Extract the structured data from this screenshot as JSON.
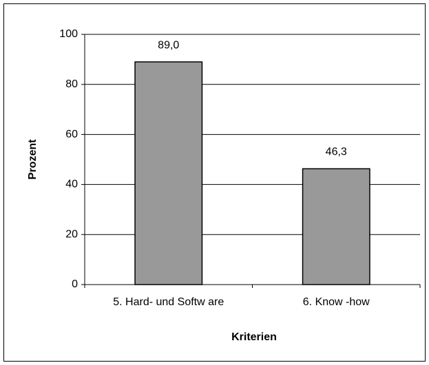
{
  "chart_data": {
    "type": "bar",
    "categories": [
      "5. Hard- und Softw are",
      "6. Know -how"
    ],
    "values": [
      89.0,
      46.3
    ],
    "value_labels": [
      "89,0",
      "46,3"
    ],
    "color": "#999999",
    "xlabel": "Kriterien",
    "ylabel": "Prozent",
    "ylim": [
      0,
      100
    ],
    "yticks": [
      0,
      20,
      40,
      60,
      80,
      100
    ],
    "grid": true
  }
}
